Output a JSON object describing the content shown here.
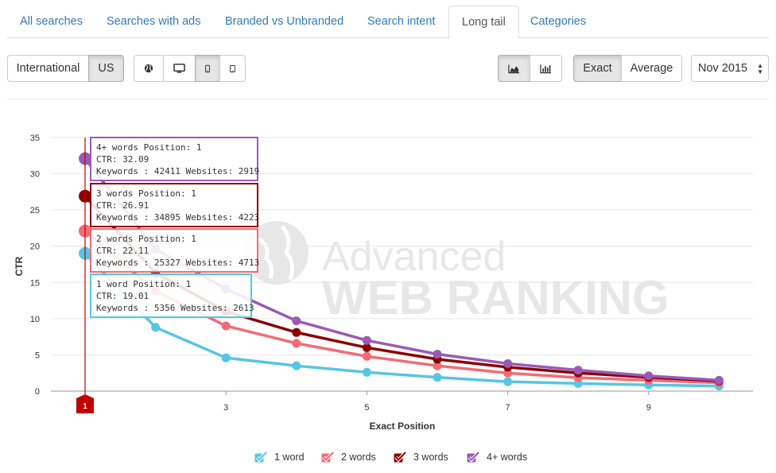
{
  "tabs": [
    {
      "label": "All searches",
      "active": false
    },
    {
      "label": "Searches with ads",
      "active": false
    },
    {
      "label": "Branded vs Unbranded",
      "active": false
    },
    {
      "label": "Search intent",
      "active": false
    },
    {
      "label": "Long tail",
      "active": true
    },
    {
      "label": "Categories",
      "active": false
    }
  ],
  "toolbar": {
    "region": {
      "international": "International",
      "us": "US",
      "active": "US"
    },
    "devices": {
      "active": "mobile"
    },
    "chart_type": {
      "active": "area"
    },
    "metric": {
      "exact": "Exact",
      "average": "Average",
      "active": "Exact"
    },
    "date_select": "Nov 2015"
  },
  "watermark": {
    "line1": "Advanced",
    "line2": "WEB RANKING"
  },
  "colors": {
    "one_word": "#55c6e3",
    "two_words": "#f26b75",
    "three_words": "#8b0000",
    "four_words": "#9b59b6",
    "marker": "#c00000"
  },
  "chart_data": {
    "type": "line",
    "xlabel": "Exact Position",
    "ylabel": "CTR",
    "xlim": [
      1,
      10
    ],
    "ylim": [
      0,
      35
    ],
    "xticks": [
      3,
      5,
      7,
      9
    ],
    "yticks": [
      0,
      5,
      10,
      15,
      20,
      25,
      30,
      35
    ],
    "grid": true,
    "legend": "bottom",
    "x": [
      1,
      2,
      3,
      4,
      5,
      6,
      7,
      8,
      9,
      10
    ],
    "series": [
      {
        "name": "1 word",
        "color": "#55c6e3",
        "values": [
          19.01,
          8.8,
          4.6,
          3.5,
          2.6,
          1.9,
          1.3,
          1.05,
          0.85,
          0.7
        ]
      },
      {
        "name": "2 words",
        "color": "#f26b75",
        "values": [
          22.11,
          13.8,
          9.0,
          6.6,
          4.8,
          3.5,
          2.5,
          1.85,
          1.5,
          1.15
        ]
      },
      {
        "name": "3 words",
        "color": "#8b0000",
        "values": [
          26.91,
          16.3,
          11.0,
          8.1,
          6.0,
          4.4,
          3.3,
          2.5,
          1.9,
          1.4
        ]
      },
      {
        "name": "4+ words",
        "color": "#9b59b6",
        "values": [
          32.09,
          19.6,
          14.1,
          9.7,
          7.0,
          5.1,
          3.8,
          2.9,
          2.1,
          1.5
        ]
      }
    ],
    "marker_label": "1",
    "tooltips": [
      {
        "series": "4+ words",
        "line1": "4+ words Position: 1",
        "line2": "CTR: 32.09",
        "line3": "Keywords : 42411 Websites: 2919"
      },
      {
        "series": "3 words",
        "line1": "3 words Position: 1",
        "line2": "CTR: 26.91",
        "line3": "Keywords : 34895 Websites: 4223"
      },
      {
        "series": "2 words",
        "line1": "2 words Position: 1",
        "line2": "CTR: 22.11",
        "line3": "Keywords : 25327 Websites: 4713"
      },
      {
        "series": "1 word",
        "line1": "1 word Position: 1",
        "line2": "CTR: 19.01",
        "line3": "Keywords : 5356 Websites: 2613"
      }
    ]
  }
}
